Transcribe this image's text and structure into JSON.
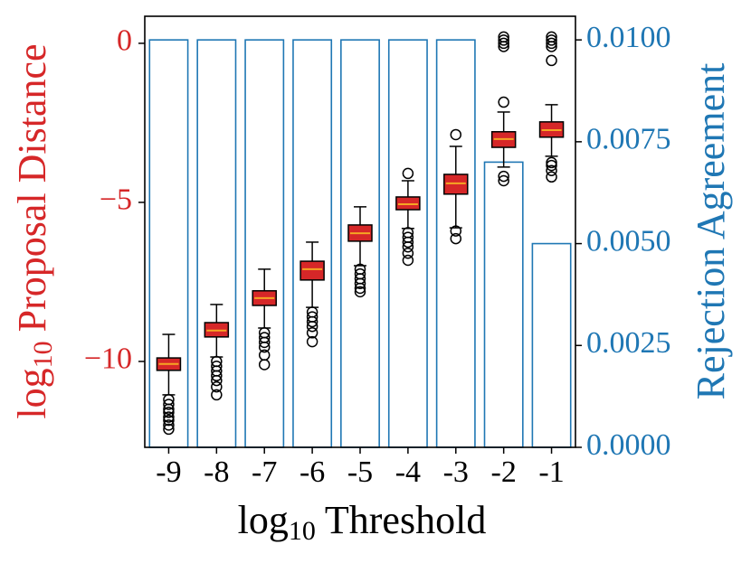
{
  "chart_data": {
    "type": "box",
    "xlabel": {
      "base": "log",
      "sub": "10",
      "text": "Threshold"
    },
    "ylabel": {
      "base": "log",
      "sub": "10",
      "text": "Proposal Distance"
    },
    "y2label": "Rejection Agreement",
    "ylabel_color": "#d62728",
    "y2label_color": "#1f77b4",
    "categories": [
      "-9",
      "-8",
      "-7",
      "-6",
      "-5",
      "-4",
      "-3",
      "-2",
      "-1"
    ],
    "box_color": "#d62728",
    "median_color": "#f5a623",
    "boxes": [
      {
        "whislo": -11.05,
        "q1": -10.28,
        "med": -10.08,
        "q3": -9.89,
        "whishi": -9.15,
        "fliers": [
          -11.2,
          -11.35,
          -11.5,
          -11.6,
          -11.75,
          -11.85,
          -12.0,
          -12.13
        ]
      },
      {
        "whislo": -9.86,
        "q1": -9.23,
        "med": -9.03,
        "q3": -8.78,
        "whishi": -8.21,
        "fliers": [
          -10.0,
          -10.15,
          -10.3,
          -10.45,
          -10.6,
          -10.8,
          -11.05
        ]
      },
      {
        "whislo": -8.95,
        "q1": -8.24,
        "med": -8.01,
        "q3": -7.78,
        "whishi": -7.1,
        "fliers": [
          -9.1,
          -9.25,
          -9.4,
          -9.55,
          -9.8,
          -10.1
        ]
      },
      {
        "whislo": -8.3,
        "q1": -7.44,
        "med": -7.1,
        "q3": -6.85,
        "whishi": -6.25,
        "fliers": [
          -8.45,
          -8.6,
          -8.75,
          -8.9,
          -9.1,
          -9.38
        ]
      },
      {
        "whislo": -6.99,
        "q1": -6.22,
        "med": -5.97,
        "q3": -5.71,
        "whishi": -5.14,
        "fliers": [
          -7.1,
          -7.25,
          -7.4,
          -7.55,
          -7.7,
          -7.81
        ]
      },
      {
        "whislo": -5.82,
        "q1": -5.23,
        "med": -5.06,
        "q3": -4.83,
        "whishi": -4.32,
        "fliers": [
          -4.09,
          -5.95,
          -6.1,
          -6.25,
          -6.4,
          -6.6,
          -6.82
        ]
      },
      {
        "whislo": -5.8,
        "q1": -4.74,
        "med": -4.4,
        "q3": -4.12,
        "whishi": -3.24,
        "fliers": [
          -2.87,
          -5.9,
          -6.14
        ]
      },
      {
        "whislo": -3.89,
        "q1": -3.27,
        "med": -3.01,
        "q3": -2.78,
        "whishi": -2.16,
        "fliers": [
          0.2,
          0.1,
          0.0,
          -0.1,
          -1.85,
          -4.18,
          -4.32
        ]
      },
      {
        "whislo": -3.55,
        "q1": -2.95,
        "med": -2.73,
        "q3": -2.47,
        "whishi": -1.93,
        "fliers": [
          0.2,
          0.1,
          0.0,
          -0.1,
          -0.54,
          -3.75,
          -3.84,
          -4.0,
          -4.2
        ]
      }
    ],
    "bars": {
      "axis": "y2",
      "color": "#1f77b4",
      "values": [
        0.01,
        0.01,
        0.01,
        0.01,
        0.01,
        0.01,
        0.01,
        0.007,
        0.005
      ]
    },
    "ylim": [
      -12.7,
      0.85
    ],
    "yticks": [
      {
        "value": 0,
        "label": "0"
      },
      {
        "value": -5,
        "label": "−5"
      },
      {
        "value": -10,
        "label": "−10"
      }
    ],
    "y2lim": [
      0,
      0.01058
    ],
    "y2ticks": [
      {
        "value": 0,
        "label": "0.0000"
      },
      {
        "value": 0.0025,
        "label": "0.0025"
      },
      {
        "value": 0.005,
        "label": "0.0050"
      },
      {
        "value": 0.0075,
        "label": "0.0075"
      },
      {
        "value": 0.01,
        "label": "0.0100"
      }
    ]
  }
}
